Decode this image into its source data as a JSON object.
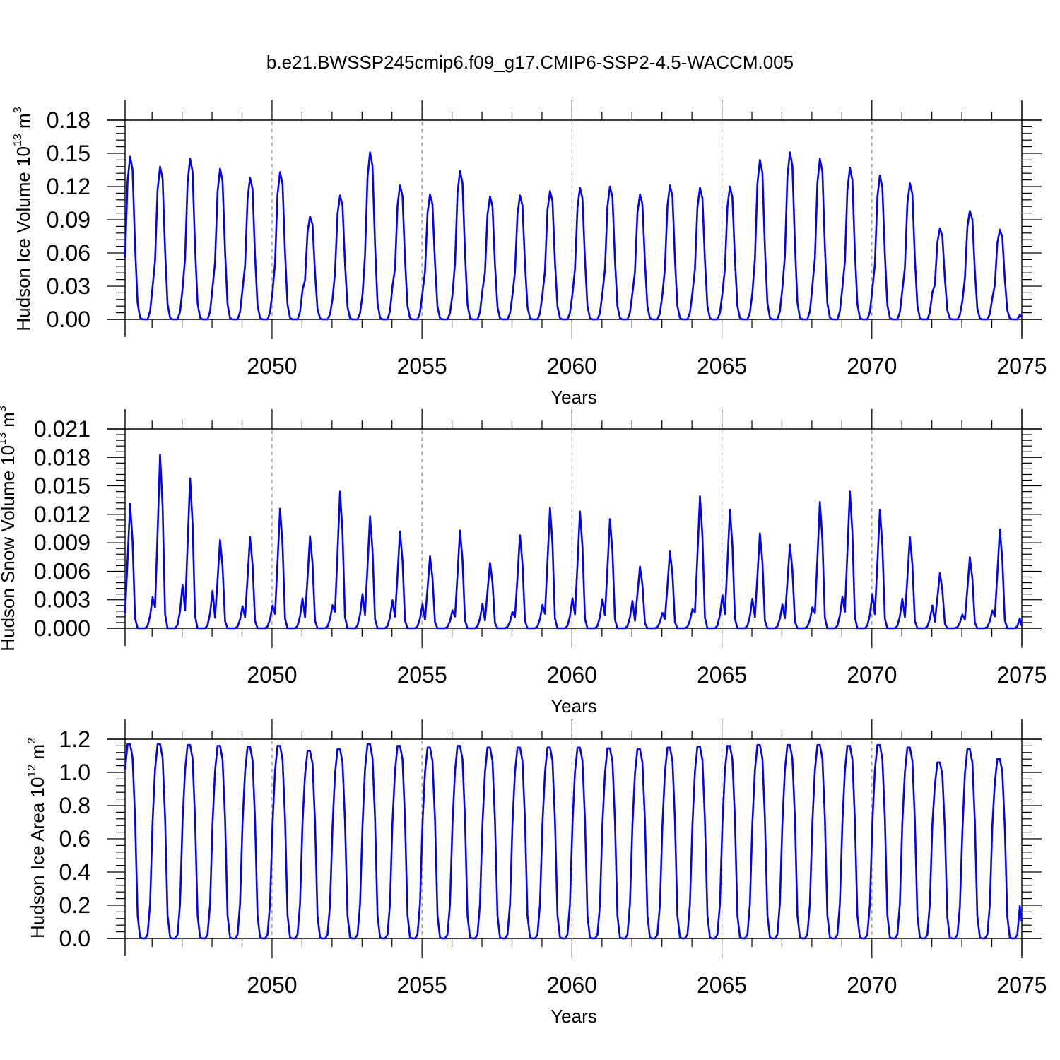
{
  "title": "b.e21.BWSSP245cmip6.f09_g17.CMIP6-SSP2-4.5-WACCM.005",
  "chart_data": [
    {
      "type": "line",
      "name": "ice-volume",
      "ylabel": {
        "main": "Hudson Ice Volume 10",
        "exp": "13",
        "unit": " m",
        "unit_exp": "3"
      },
      "xlabel": "Years",
      "xlim": [
        2045.1,
        2075.0
      ],
      "x_ticks": [
        2050,
        2055,
        2060,
        2065,
        2070,
        2075
      ],
      "x_tick_labels": [
        "2050",
        "2055",
        "2060",
        "2065",
        "2070",
        "2075"
      ],
      "ylim": [
        0,
        0.18
      ],
      "y_ticks": [
        0,
        0.03,
        0.06,
        0.09,
        0.12,
        0.15,
        0.18
      ],
      "y_tick_labels": [
        "0.00",
        "0.03",
        "0.06",
        "0.09",
        "0.12",
        "0.15",
        "0.18"
      ],
      "grid": "vertical dashed at major ticks",
      "series": [
        {
          "name": "Hudson Ice Volume",
          "color": "#0000ff",
          "start_year": 2045.1,
          "annual_peaks": [
            0.147,
            0.138,
            0.145,
            0.136,
            0.128,
            0.133,
            0.093,
            0.112,
            0.151,
            0.121,
            0.113,
            0.134,
            0.111,
            0.112,
            0.116,
            0.119,
            0.12,
            0.113,
            0.121,
            0.119,
            0.12,
            0.144,
            0.151,
            0.145,
            0.137,
            0.13,
            0.123,
            0.082,
            0.098,
            0.081
          ]
        }
      ]
    },
    {
      "type": "line",
      "name": "snow-volume",
      "ylabel": {
        "main": "Hudson Snow Volume 10",
        "exp": "13",
        "unit": " m",
        "unit_exp": "3"
      },
      "xlabel": "Years",
      "xlim": [
        2045.1,
        2075.0
      ],
      "x_ticks": [
        2050,
        2055,
        2060,
        2065,
        2070,
        2075
      ],
      "x_tick_labels": [
        "2050",
        "2055",
        "2060",
        "2065",
        "2070",
        "2075"
      ],
      "ylim": [
        0,
        0.021
      ],
      "y_ticks": [
        0,
        0.003,
        0.006,
        0.009,
        0.012,
        0.015,
        0.018,
        0.021
      ],
      "y_tick_labels": [
        "0.000",
        "0.003",
        "0.006",
        "0.009",
        "0.012",
        "0.015",
        "0.018",
        "0.021"
      ],
      "grid": "vertical dashed at major ticks",
      "series": [
        {
          "name": "Hudson Snow Volume",
          "color": "#0000ff",
          "start_year": 2045.1,
          "annual_peaks": [
            0.0131,
            0.0183,
            0.0158,
            0.0093,
            0.0096,
            0.0126,
            0.0097,
            0.0144,
            0.0118,
            0.0102,
            0.0076,
            0.0103,
            0.0069,
            0.0098,
            0.0127,
            0.0123,
            0.0115,
            0.0065,
            0.0081,
            0.0139,
            0.0125,
            0.01,
            0.0088,
            0.0133,
            0.0144,
            0.0125,
            0.0096,
            0.0058,
            0.0075,
            0.0104
          ]
        }
      ]
    },
    {
      "type": "line",
      "name": "ice-area",
      "ylabel": {
        "main": "Hudson Ice Area 10",
        "exp": "12",
        "unit": " m",
        "unit_exp": "2"
      },
      "xlabel": "Years",
      "xlim": [
        2045.1,
        2075.0
      ],
      "x_ticks": [
        2050,
        2055,
        2060,
        2065,
        2070,
        2075
      ],
      "x_tick_labels": [
        "2050",
        "2055",
        "2060",
        "2065",
        "2070",
        "2075"
      ],
      "ylim": [
        0,
        1.2
      ],
      "y_ticks": [
        0,
        0.2,
        0.4,
        0.6,
        0.8,
        1.0,
        1.2
      ],
      "y_tick_labels": [
        "0.0",
        "0.2",
        "0.4",
        "0.6",
        "0.8",
        "1.0",
        "1.2"
      ],
      "grid": "vertical dashed at major ticks",
      "series": [
        {
          "name": "Hudson Ice Area",
          "color": "#0000ff",
          "start_year": 2045.1,
          "annual_peaks": [
            1.17,
            1.17,
            1.165,
            1.16,
            1.155,
            1.16,
            1.13,
            1.14,
            1.17,
            1.16,
            1.15,
            1.16,
            1.15,
            1.15,
            1.15,
            1.15,
            1.145,
            1.14,
            1.15,
            1.155,
            1.16,
            1.165,
            1.165,
            1.165,
            1.16,
            1.165,
            1.15,
            1.06,
            1.14,
            1.08
          ]
        }
      ]
    }
  ]
}
